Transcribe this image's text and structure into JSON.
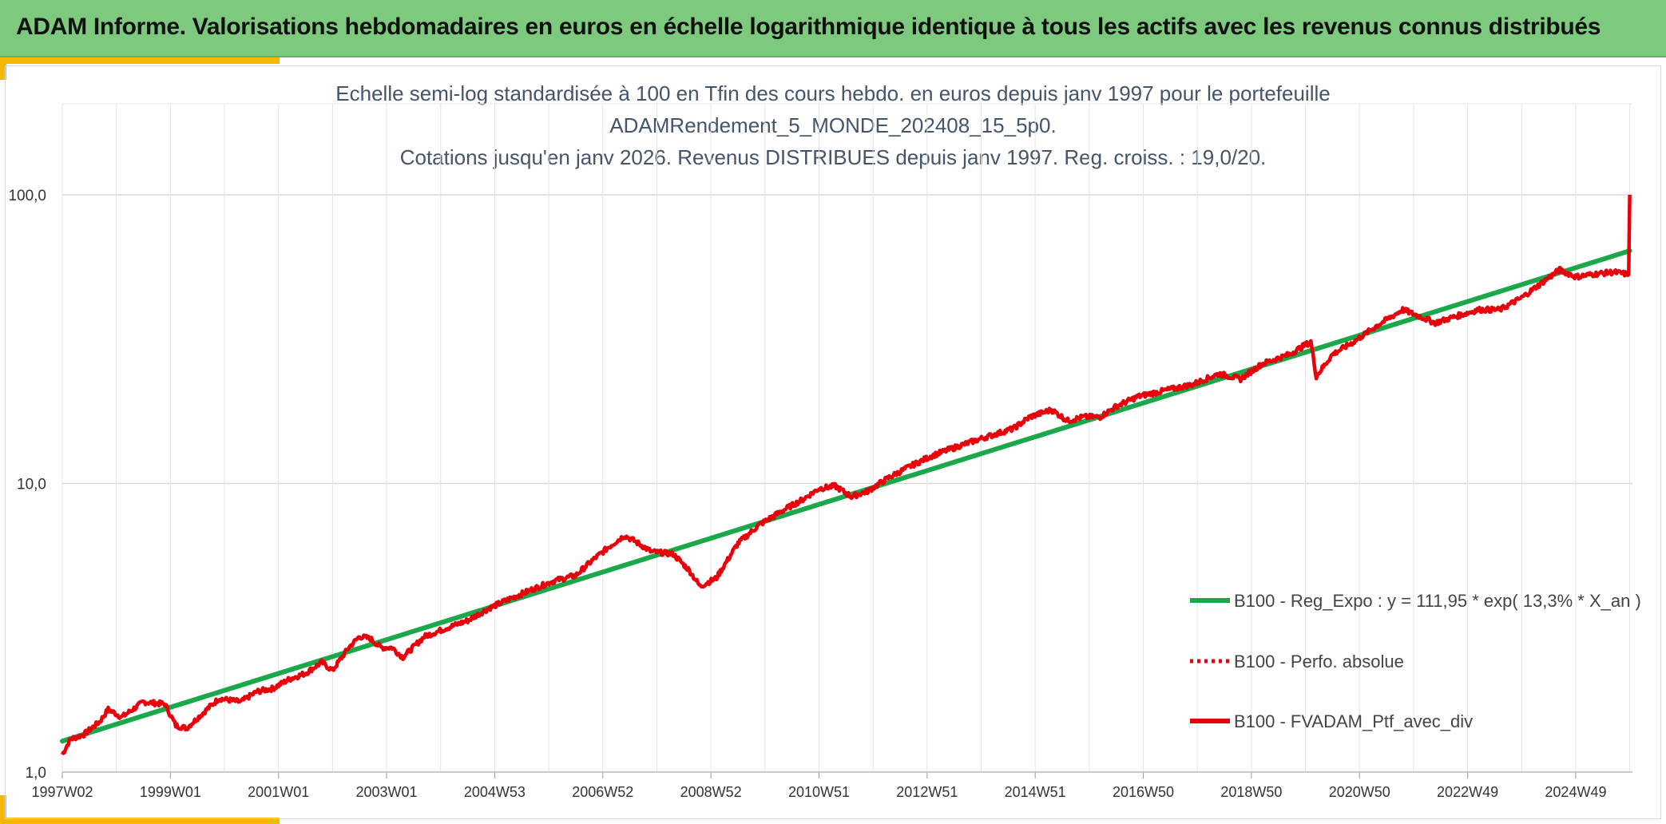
{
  "header": {
    "title": "ADAM Informe. Valorisations hebdomadaires en euros en échelle logarithmique identique à tous les actifs avec les revenus connus distribués"
  },
  "colors": {
    "header_bg": "#7dc97e",
    "accent": "#f5b800",
    "regression": "#1aa84a",
    "portfolio": "#e8000b"
  },
  "chart_data": {
    "type": "line",
    "y_scale": "log",
    "ylim": [
      1,
      200
    ],
    "title_lines": [
      "Echelle semi-log standardisée à 100 en Tfin des cours hebdo. en euros depuis janv 1997 pour le portefeuille",
      "ADAMRendement_5_MONDE_202408_15_5p0.",
      "Cotations jusqu'en janv 2026. Revenus DISTRIBUES depuis janv 1997. Reg. croiss. : 19,0/20."
    ],
    "y_ticks": [
      {
        "value": 100,
        "label": "100,0"
      },
      {
        "value": 10,
        "label": "10,0"
      },
      {
        "value": 1,
        "label": "1,0"
      }
    ],
    "x_range": [
      1997.0,
      2026.05
    ],
    "x_ticks": [
      {
        "x": 1997.0,
        "label": "1997W02"
      },
      {
        "x": 1999.0,
        "label": "1999W01"
      },
      {
        "x": 2001.0,
        "label": "2001W01"
      },
      {
        "x": 2003.0,
        "label": "2003W01"
      },
      {
        "x": 2005.0,
        "label": "2004W53"
      },
      {
        "x": 2007.0,
        "label": "2006W52"
      },
      {
        "x": 2009.0,
        "label": "2008W52"
      },
      {
        "x": 2011.0,
        "label": "2010W51"
      },
      {
        "x": 2013.0,
        "label": "2012W51"
      },
      {
        "x": 2015.0,
        "label": "2014W51"
      },
      {
        "x": 2017.0,
        "label": "2016W50"
      },
      {
        "x": 2019.0,
        "label": "2018W50"
      },
      {
        "x": 2021.0,
        "label": "2020W50"
      },
      {
        "x": 2023.0,
        "label": "2022W49"
      },
      {
        "x": 2025.0,
        "label": "2024W49"
      }
    ],
    "series": [
      {
        "name": "B100 - Reg_Expo : y = 111,95 * exp( 13,3% *  X_an )",
        "style": "solid-green",
        "points": [
          [
            1997.0,
            1.28
          ],
          [
            2026.0,
            64.0
          ]
        ]
      },
      {
        "name": "B100 - Perfo. absolue",
        "style": "dotted-red",
        "points": []
      },
      {
        "name": "B100 - FVADAM_Ptf_avec_div",
        "style": "solid-red",
        "points": [
          [
            1997.0,
            1.15
          ],
          [
            1997.15,
            1.3
          ],
          [
            1997.4,
            1.35
          ],
          [
            1997.7,
            1.5
          ],
          [
            1997.85,
            1.65
          ],
          [
            1998.1,
            1.55
          ],
          [
            1998.5,
            1.75
          ],
          [
            1998.9,
            1.72
          ],
          [
            1999.1,
            1.45
          ],
          [
            1999.3,
            1.42
          ],
          [
            1999.6,
            1.6
          ],
          [
            1999.9,
            1.8
          ],
          [
            2000.3,
            1.75
          ],
          [
            2000.6,
            1.9
          ],
          [
            2000.9,
            1.95
          ],
          [
            2001.2,
            2.1
          ],
          [
            2001.5,
            2.2
          ],
          [
            2001.8,
            2.4
          ],
          [
            2002.0,
            2.25
          ],
          [
            2002.3,
            2.7
          ],
          [
            2002.5,
            2.95
          ],
          [
            2002.7,
            2.9
          ],
          [
            2002.9,
            2.7
          ],
          [
            2003.1,
            2.7
          ],
          [
            2003.3,
            2.5
          ],
          [
            2003.7,
            2.95
          ],
          [
            2004.1,
            3.15
          ],
          [
            2004.5,
            3.35
          ],
          [
            2004.9,
            3.7
          ],
          [
            2005.3,
            4.0
          ],
          [
            2005.7,
            4.3
          ],
          [
            2006.1,
            4.6
          ],
          [
            2006.5,
            4.8
          ],
          [
            2006.8,
            5.4
          ],
          [
            2007.1,
            6.0
          ],
          [
            2007.4,
            6.6
          ],
          [
            2007.6,
            6.3
          ],
          [
            2007.9,
            5.8
          ],
          [
            2008.3,
            5.7
          ],
          [
            2008.6,
            5.0
          ],
          [
            2008.8,
            4.4
          ],
          [
            2009.1,
            4.7
          ],
          [
            2009.5,
            6.2
          ],
          [
            2009.9,
            7.2
          ],
          [
            2010.3,
            8.0
          ],
          [
            2010.7,
            8.8
          ],
          [
            2011.0,
            9.6
          ],
          [
            2011.3,
            9.8
          ],
          [
            2011.6,
            9.0
          ],
          [
            2011.9,
            9.4
          ],
          [
            2012.3,
            10.5
          ],
          [
            2012.7,
            11.5
          ],
          [
            2013.1,
            12.5
          ],
          [
            2013.6,
            13.5
          ],
          [
            2014.1,
            14.5
          ],
          [
            2014.6,
            15.5
          ],
          [
            2014.9,
            17.0
          ],
          [
            2015.3,
            18.0
          ],
          [
            2015.6,
            16.5
          ],
          [
            2015.9,
            17.0
          ],
          [
            2016.2,
            17.0
          ],
          [
            2016.5,
            18.5
          ],
          [
            2016.9,
            20.0
          ],
          [
            2017.4,
            21.0
          ],
          [
            2017.9,
            22.0
          ],
          [
            2018.4,
            24.0
          ],
          [
            2018.8,
            23.0
          ],
          [
            2019.2,
            26.0
          ],
          [
            2019.7,
            28.0
          ],
          [
            2020.1,
            31.0
          ],
          [
            2020.2,
            23.5
          ],
          [
            2020.5,
            28.0
          ],
          [
            2020.9,
            31.0
          ],
          [
            2021.3,
            35.0
          ],
          [
            2021.8,
            40.0
          ],
          [
            2022.1,
            38.0
          ],
          [
            2022.4,
            36.0
          ],
          [
            2022.8,
            38.0
          ],
          [
            2023.2,
            40.0
          ],
          [
            2023.6,
            40.0
          ],
          [
            2024.0,
            44.0
          ],
          [
            2024.4,
            50.0
          ],
          [
            2024.7,
            55.0
          ],
          [
            2025.0,
            52.0
          ],
          [
            2025.3,
            53.0
          ],
          [
            2025.7,
            54.0
          ],
          [
            2025.98,
            53.0
          ],
          [
            2026.0,
            100.0
          ]
        ]
      }
    ],
    "legend_position": "bottom-right",
    "grid": true
  }
}
